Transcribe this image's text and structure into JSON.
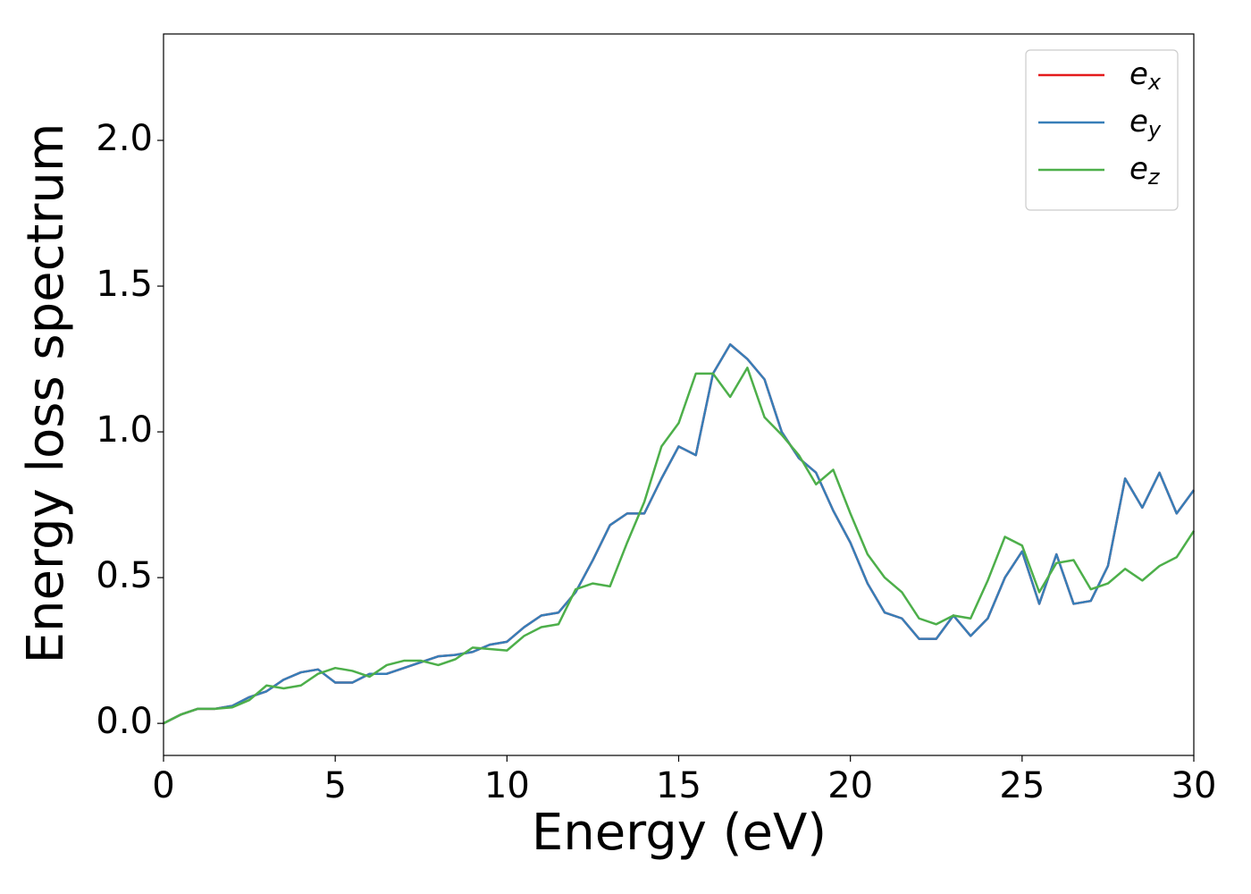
{
  "chart_data": {
    "type": "line",
    "xlabel": "Energy (eV)",
    "ylabel": "Energy loss spectrum",
    "x": [
      0,
      0.5,
      1,
      1.5,
      2,
      2.5,
      3,
      3.5,
      4,
      4.5,
      5,
      5.5,
      6,
      6.5,
      7,
      7.5,
      8,
      8.5,
      9,
      9.5,
      10,
      10.5,
      11,
      11.5,
      12,
      12.5,
      13,
      13.5,
      14,
      14.5,
      15,
      15.5,
      16,
      16.5,
      17,
      17.5,
      18,
      18.5,
      19,
      19.5,
      20,
      20.5,
      21,
      21.5,
      22,
      22.5,
      23,
      23.5,
      24,
      24.5,
      25,
      25.5,
      26,
      26.5,
      27,
      27.5,
      28,
      28.5,
      29,
      29.5,
      30
    ],
    "series": [
      {
        "name": "e_x",
        "color": "#e41a1c",
        "values": [
          0,
          0.03,
          0.05,
          0.05,
          0.06,
          0.09,
          0.11,
          0.15,
          0.175,
          0.185,
          0.14,
          0.14,
          0.17,
          0.17,
          0.19,
          0.21,
          0.23,
          0.235,
          0.245,
          0.27,
          0.28,
          0.33,
          0.37,
          0.38,
          0.45,
          0.56,
          0.68,
          0.72,
          0.72,
          0.84,
          0.95,
          0.92,
          1.2,
          1.3,
          1.25,
          1.18,
          1.0,
          0.91,
          0.86,
          0.73,
          0.62,
          0.48,
          0.38,
          0.36,
          0.29,
          0.29,
          0.37,
          0.3,
          0.36,
          0.5,
          0.59,
          0.41,
          0.58,
          0.41,
          0.42,
          0.54,
          0.84,
          0.74,
          0.86,
          0.72,
          0.8
        ]
      },
      {
        "name": "e_y",
        "color": "#377eb8",
        "values": [
          0,
          0.03,
          0.05,
          0.05,
          0.06,
          0.09,
          0.11,
          0.15,
          0.175,
          0.185,
          0.14,
          0.14,
          0.17,
          0.17,
          0.19,
          0.21,
          0.23,
          0.235,
          0.245,
          0.27,
          0.28,
          0.33,
          0.37,
          0.38,
          0.45,
          0.56,
          0.68,
          0.72,
          0.72,
          0.84,
          0.95,
          0.92,
          1.2,
          1.3,
          1.25,
          1.18,
          1.0,
          0.91,
          0.86,
          0.73,
          0.62,
          0.48,
          0.38,
          0.36,
          0.29,
          0.29,
          0.37,
          0.3,
          0.36,
          0.5,
          0.59,
          0.41,
          0.58,
          0.41,
          0.42,
          0.54,
          0.84,
          0.74,
          0.86,
          0.72,
          0.8
        ]
      },
      {
        "name": "e_z",
        "color": "#4daf4a",
        "values": [
          0,
          0.03,
          0.05,
          0.05,
          0.055,
          0.08,
          0.13,
          0.12,
          0.13,
          0.17,
          0.19,
          0.18,
          0.16,
          0.2,
          0.215,
          0.215,
          0.2,
          0.22,
          0.26,
          0.255,
          0.25,
          0.3,
          0.33,
          0.34,
          0.46,
          0.48,
          0.47,
          0.62,
          0.76,
          0.95,
          1.03,
          1.2,
          1.2,
          1.12,
          1.22,
          1.05,
          0.99,
          0.92,
          0.82,
          0.87,
          0.72,
          0.58,
          0.5,
          0.45,
          0.36,
          0.34,
          0.37,
          0.36,
          0.49,
          0.64,
          0.61,
          0.45,
          0.55,
          0.56,
          0.46,
          0.48,
          0.53,
          0.49,
          0.54,
          0.57,
          0.66
        ]
      }
    ],
    "xlim": [
      0,
      30
    ],
    "xticks": [
      0,
      5,
      10,
      15,
      20,
      25,
      30
    ],
    "ylim": [
      -0.11,
      2.365
    ],
    "yticks": [
      {
        "value": 0,
        "label": "0.0"
      },
      0.5,
      {
        "value": 1,
        "label": "1.0"
      },
      1.5,
      {
        "value": 2,
        "label": "2.0"
      }
    ],
    "legend": "upper right",
    "grid": false
  }
}
